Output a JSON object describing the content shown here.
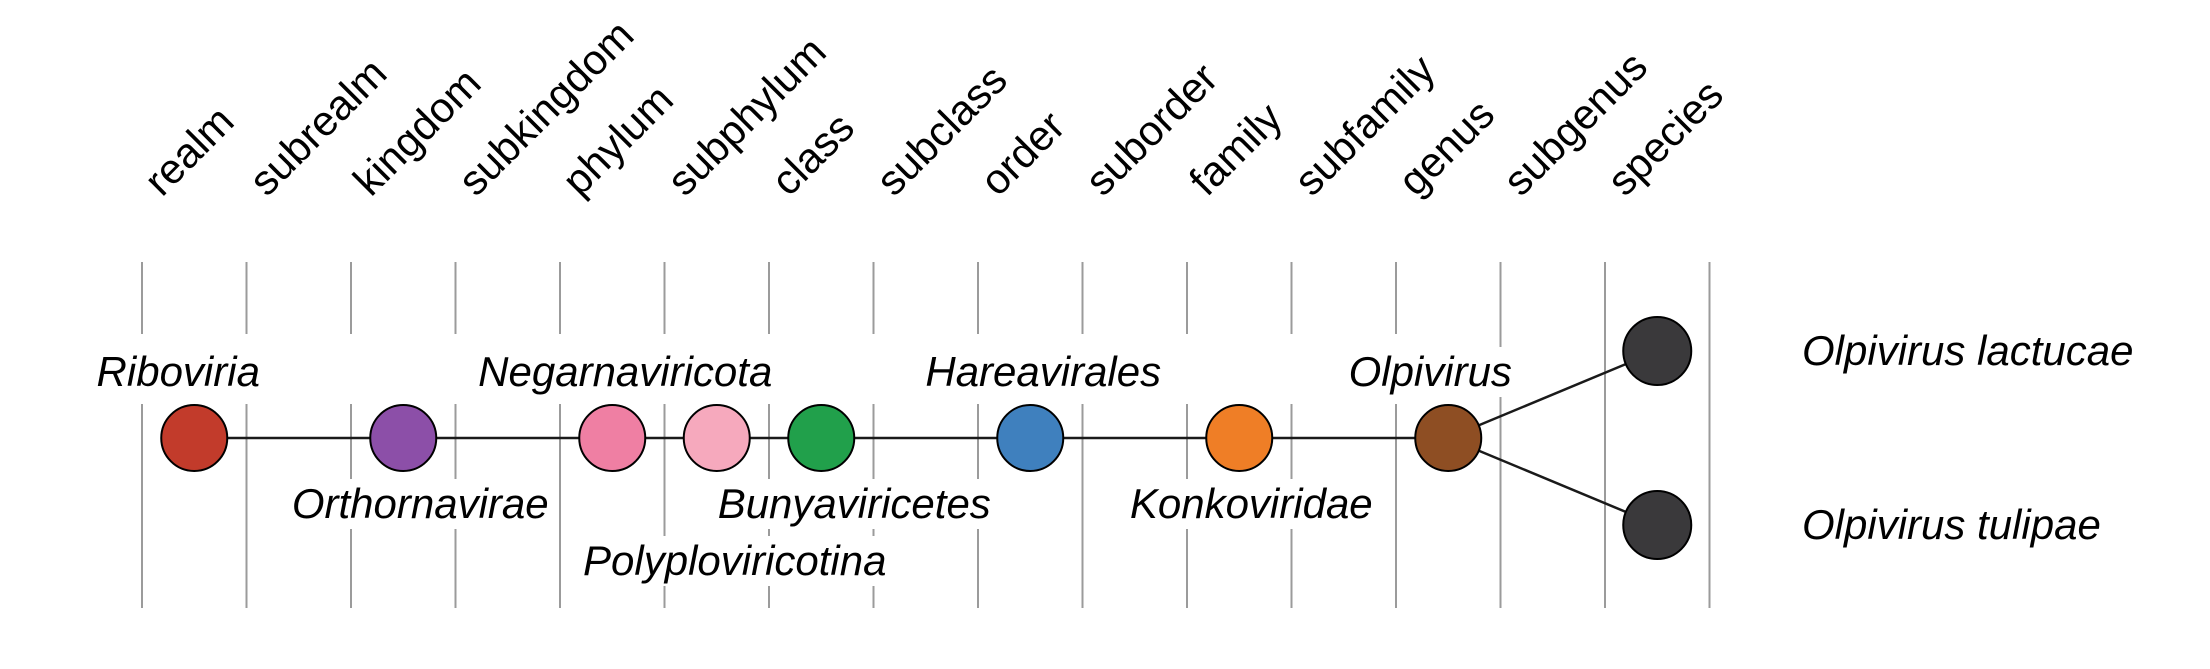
{
  "figure": {
    "type": "virus-taxonomy-lineage-diagram",
    "ranks": [
      "realm",
      "subrealm",
      "kingdom",
      "subkingdom",
      "phylum",
      "subphylum",
      "class",
      "subclass",
      "order",
      "suborder",
      "family",
      "subfamily",
      "genus",
      "subgenus",
      "species"
    ],
    "taxa": [
      {
        "name": "Riboviria",
        "rank": "realm",
        "color": "#c23b2b",
        "label_position": "above"
      },
      {
        "name": "Orthornavirae",
        "rank": "kingdom",
        "color": "#8c4fa8",
        "label_position": "below"
      },
      {
        "name": "Negarnaviricota",
        "rank": "phylum",
        "color": "#ef7fa3",
        "label_position": "above"
      },
      {
        "name": "Polyploviricotina",
        "rank": "subphylum",
        "color": "#f6a9bd",
        "label_position": "below-2"
      },
      {
        "name": "Bunyaviricetes",
        "rank": "class",
        "color": "#21a04b",
        "label_position": "below"
      },
      {
        "name": "Hareavirales",
        "rank": "order",
        "color": "#3f80be",
        "label_position": "above"
      },
      {
        "name": "Konkoviridae",
        "rank": "family",
        "color": "#ef7e26",
        "label_position": "below"
      },
      {
        "name": "Olpivirus",
        "rank": "genus",
        "color": "#8e4e23",
        "label_position": "above"
      },
      {
        "name": "Olpivirus lactucae",
        "rank": "species",
        "color": "#3a393b",
        "label_position": "right",
        "branch": "top"
      },
      {
        "name": "Olpivirus tulipae",
        "rank": "species",
        "color": "#3a393b",
        "label_position": "right",
        "branch": "bottom"
      }
    ],
    "colors": {
      "grid_line": "#9b9b9b",
      "connector": "#1a1a1a",
      "node_stroke": "#000000",
      "label_text": "#000000",
      "background": "#ffffff"
    }
  }
}
